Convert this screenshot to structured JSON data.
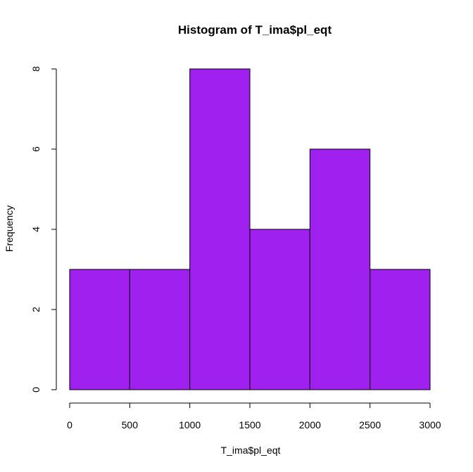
{
  "chart_data": {
    "type": "bar",
    "title": "Histogram of T_ima$pl_eqt",
    "xlabel": "T_ima$pl_eqt",
    "ylabel": "Frequency",
    "bins": [
      {
        "from": 0,
        "to": 500,
        "count": 3
      },
      {
        "from": 500,
        "to": 1000,
        "count": 3
      },
      {
        "from": 1000,
        "to": 1500,
        "count": 8
      },
      {
        "from": 1500,
        "to": 2000,
        "count": 4
      },
      {
        "from": 2000,
        "to": 2500,
        "count": 6
      },
      {
        "from": 2500,
        "to": 3000,
        "count": 3
      }
    ],
    "xlim": [
      0,
      3000
    ],
    "ylim": [
      0,
      8
    ],
    "x_ticks": [
      "0",
      "500",
      "1000",
      "1500",
      "2000",
      "2500",
      "3000"
    ],
    "y_ticks": [
      "0",
      "2",
      "4",
      "6",
      "8"
    ],
    "bar_color": "#a020f0",
    "grid": false
  }
}
